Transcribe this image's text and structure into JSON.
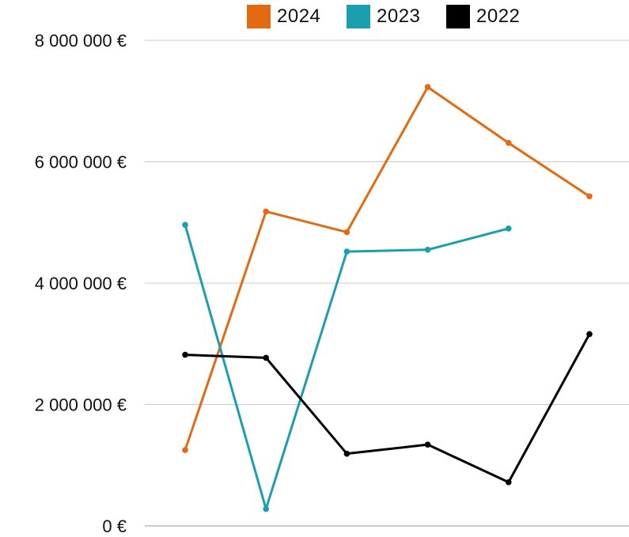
{
  "chart_data": {
    "type": "line",
    "title": "",
    "xlabel": "",
    "ylabel": "",
    "x": [
      1,
      2,
      3,
      4,
      5,
      6
    ],
    "ylim": [
      0,
      8000000
    ],
    "y_ticks": [
      0,
      2000000,
      4000000,
      6000000,
      8000000
    ],
    "y_tick_labels": [
      "0 €",
      "2 000 000 €",
      "4 000 000 €",
      "6 000 000 €",
      "8 000 000 €"
    ],
    "grid": "horizontal",
    "legend_position": "top",
    "series": [
      {
        "name": "2024",
        "color": "#E36A10",
        "values": [
          1250000,
          5180000,
          4840000,
          7230000,
          6310000,
          5430000
        ]
      },
      {
        "name": "2023",
        "color": "#1A9EB0",
        "values": [
          4960000,
          280000,
          4520000,
          4550000,
          4900000,
          null
        ]
      },
      {
        "name": "2022",
        "color": "#000000",
        "values": [
          2820000,
          2770000,
          1190000,
          1340000,
          720000,
          3160000
        ]
      }
    ]
  }
}
